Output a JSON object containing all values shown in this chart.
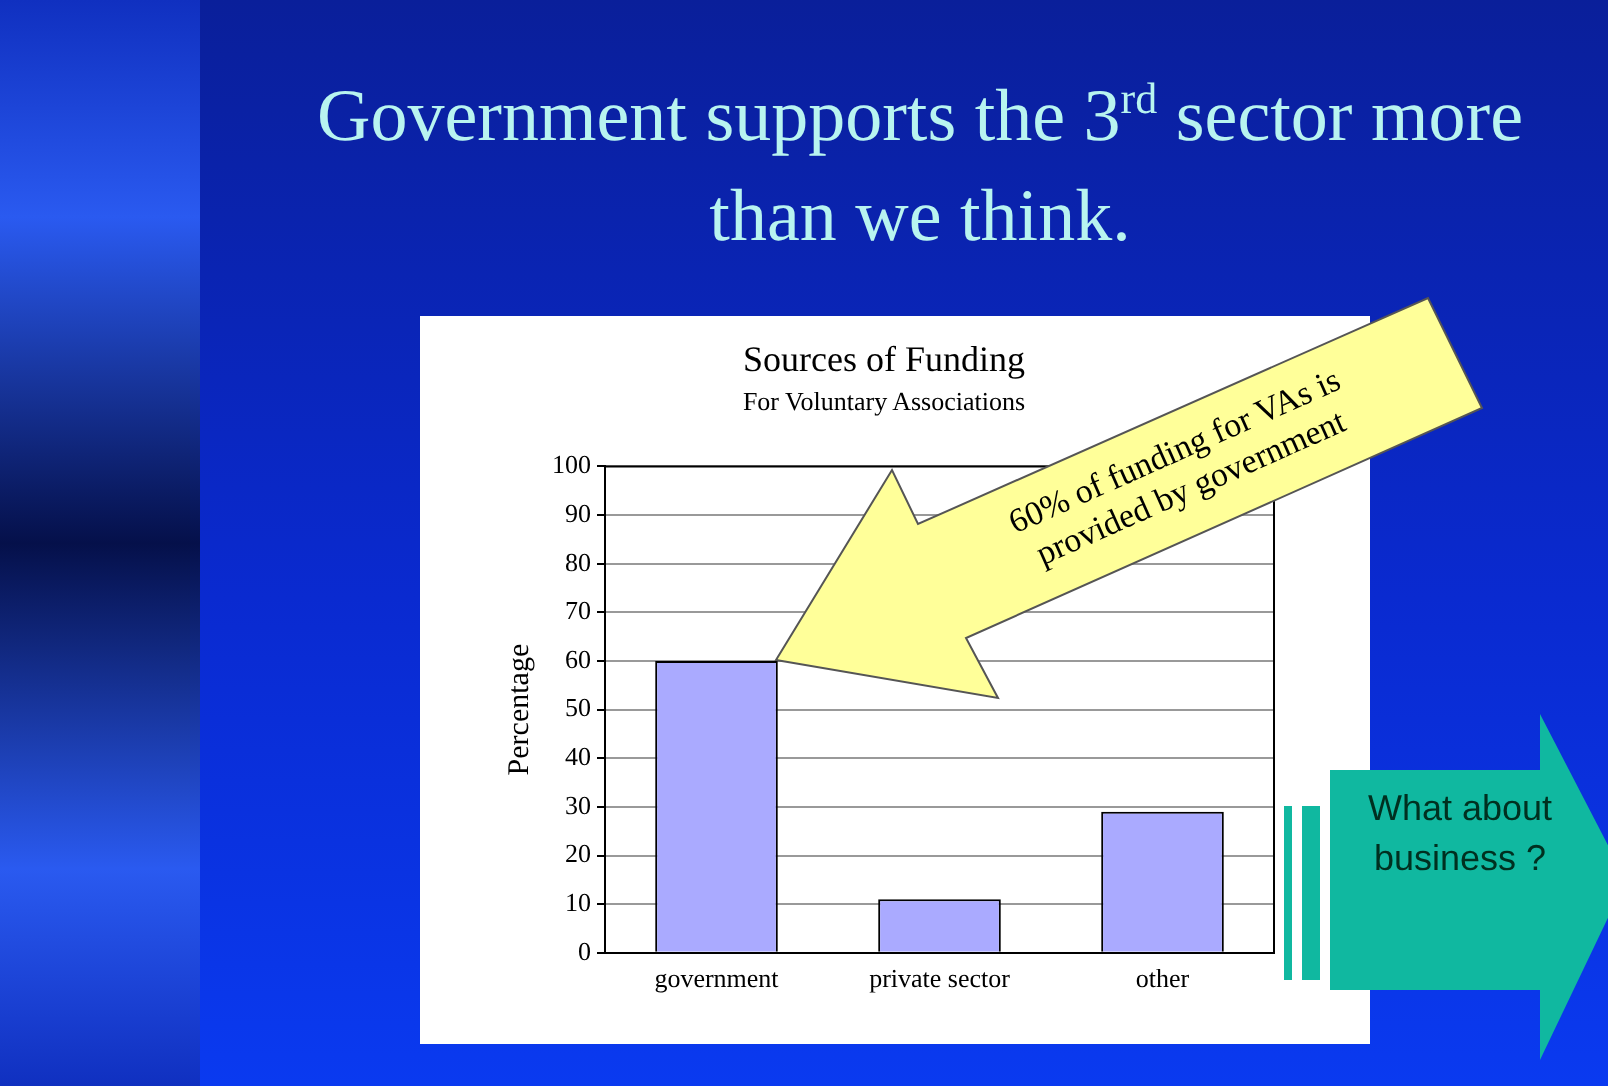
{
  "chart_data": {
    "type": "bar",
    "title": "Sources of Funding",
    "subtitle": "For Voluntary Associations",
    "ylabel": "Percentage",
    "categories": [
      "government",
      "private sector",
      "other"
    ],
    "values": [
      60,
      11,
      29
    ],
    "color": "#aaaaff",
    "ylim": [
      0,
      100
    ],
    "yticks": [
      0,
      10,
      20,
      30,
      40,
      50,
      60,
      70,
      80,
      90,
      100
    ],
    "grid": "y",
    "legend": false,
    "annotations": [
      "Government supports the 3$^{rd}$ sector more than we think.",
      "60% of funding for VAs is provided by government",
      "What about business ?"
    ]
  }
}
